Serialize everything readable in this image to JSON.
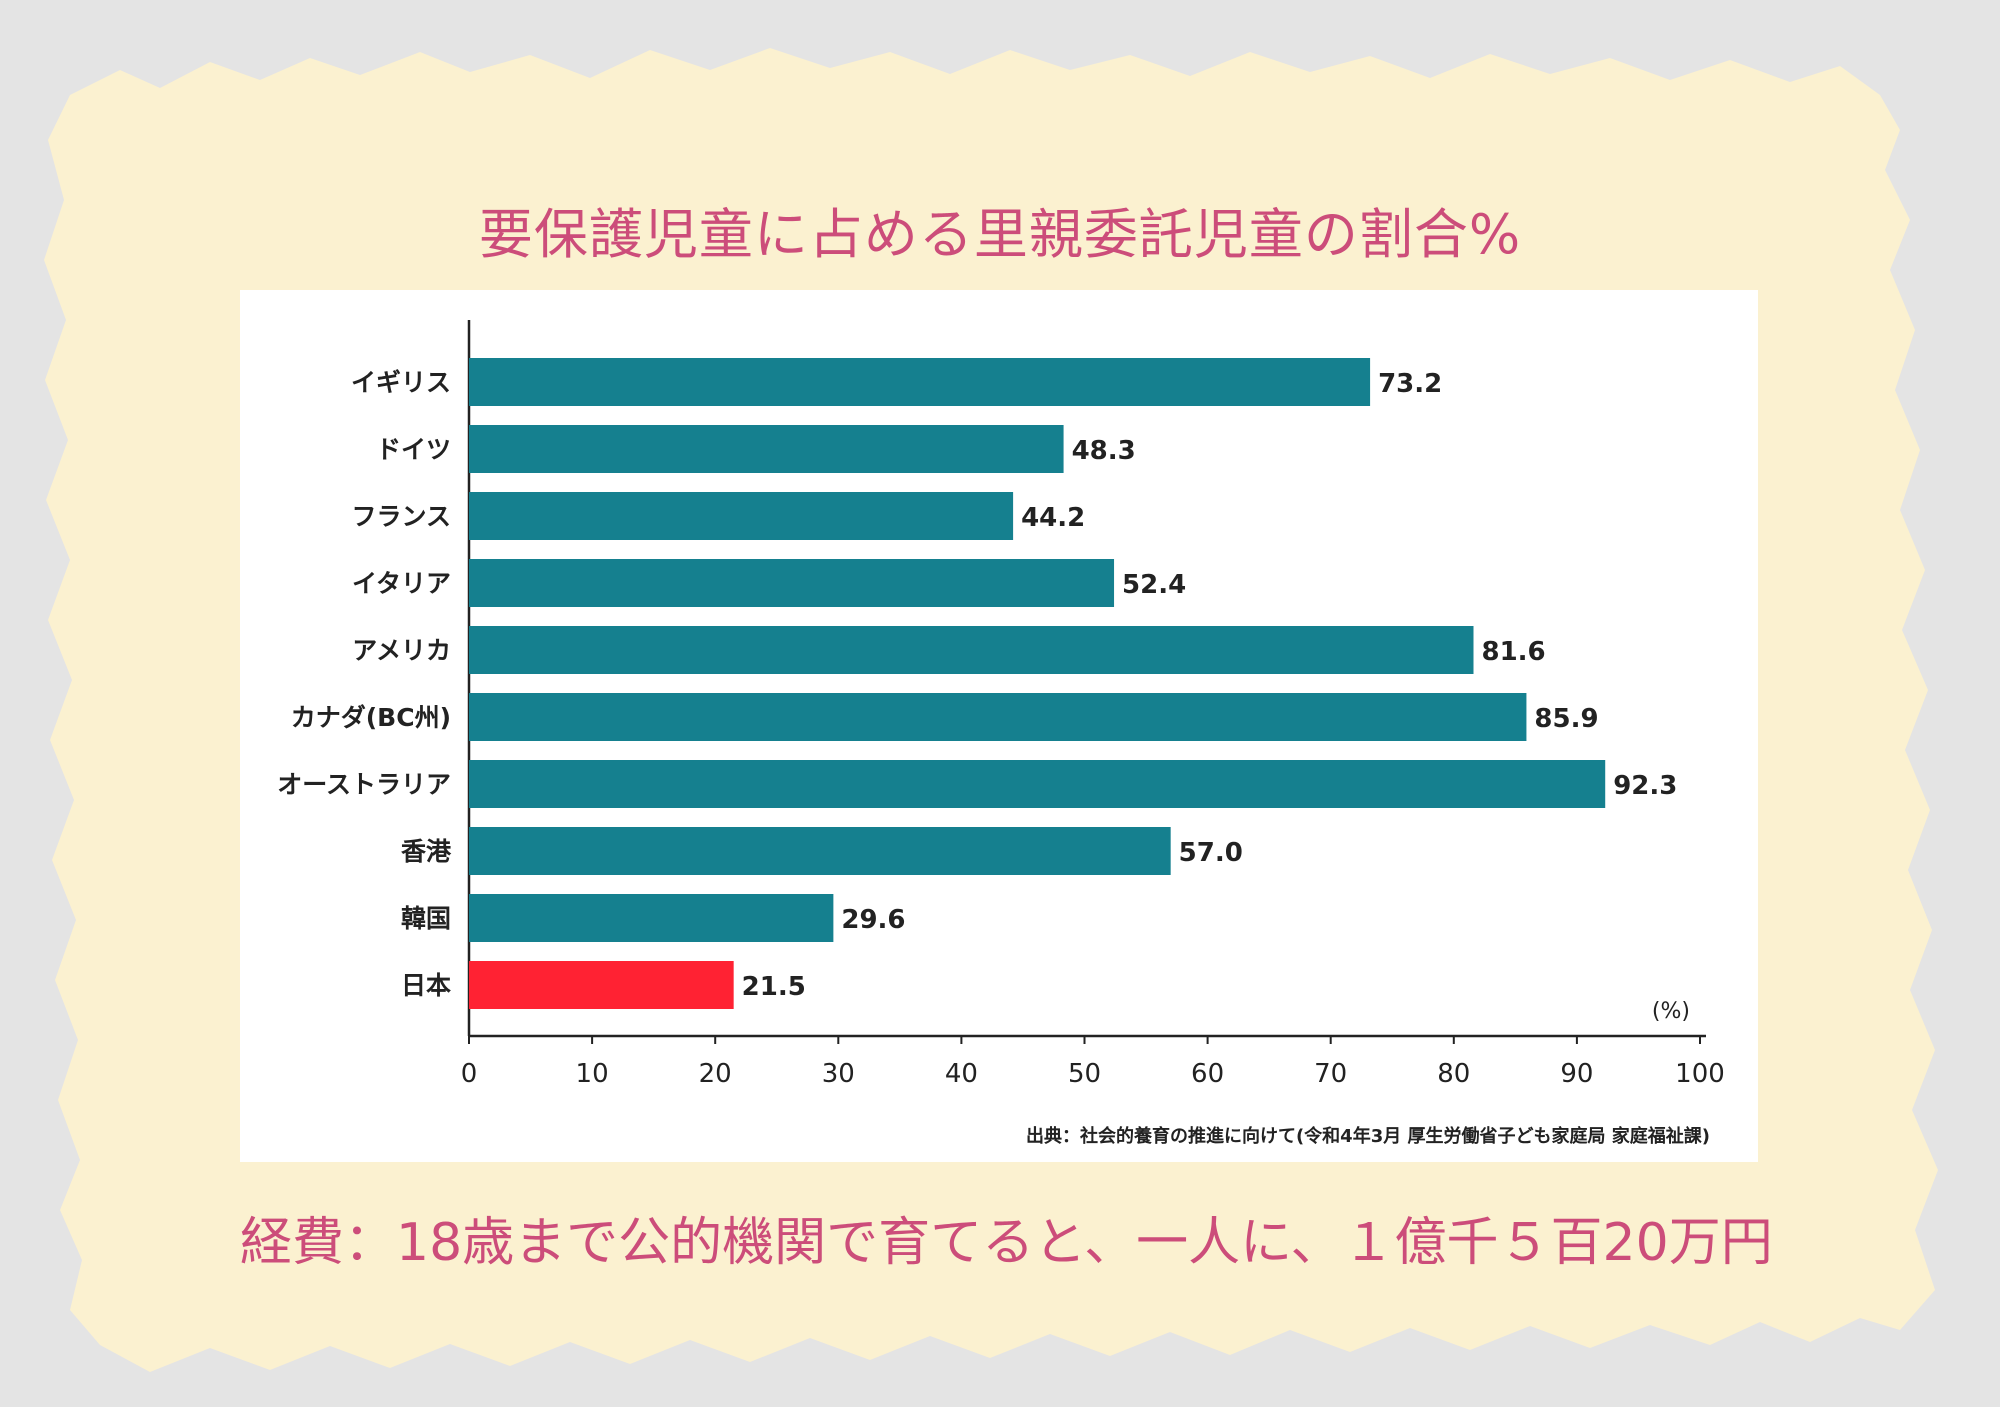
{
  "colors": {
    "page_bg": "#e4e4e4",
    "paper": "#fbf1d0",
    "accent_text": "#cc4d7a",
    "bar": "#15808f",
    "bar_highlight": "#ff2233"
  },
  "title": "要保護児童に占める里親委託児童の割合%",
  "footer": "経費：18歳まで公的機関で育てると、一人に、１億千５百20万円",
  "chart_data": {
    "type": "bar",
    "orientation": "horizontal",
    "title": "要保護児童に占める里親委託児童の割合%",
    "categories": [
      "イギリス",
      "ドイツ",
      "フランス",
      "イタリア",
      "アメリカ",
      "カナダ(BC州)",
      "オーストラリア",
      "香港",
      "韓国",
      "日本"
    ],
    "values": [
      73.2,
      48.3,
      44.2,
      52.4,
      81.6,
      85.9,
      92.3,
      57.0,
      29.6,
      21.5
    ],
    "value_labels": [
      "73.2",
      "48.3",
      "44.2",
      "52.4",
      "81.6",
      "85.9",
      "92.3",
      "57.0",
      "29.6",
      "21.5"
    ],
    "highlight_category": "日本",
    "xlim": [
      0,
      100
    ],
    "xticks": [
      0,
      10,
      20,
      30,
      40,
      50,
      60,
      70,
      80,
      90,
      100
    ],
    "unit_label": "(%)",
    "source": "出典：社会的養育の推進に向けて(令和4年3月 厚生労働省子ども家庭局 家庭福祉課)",
    "grid": false
  }
}
